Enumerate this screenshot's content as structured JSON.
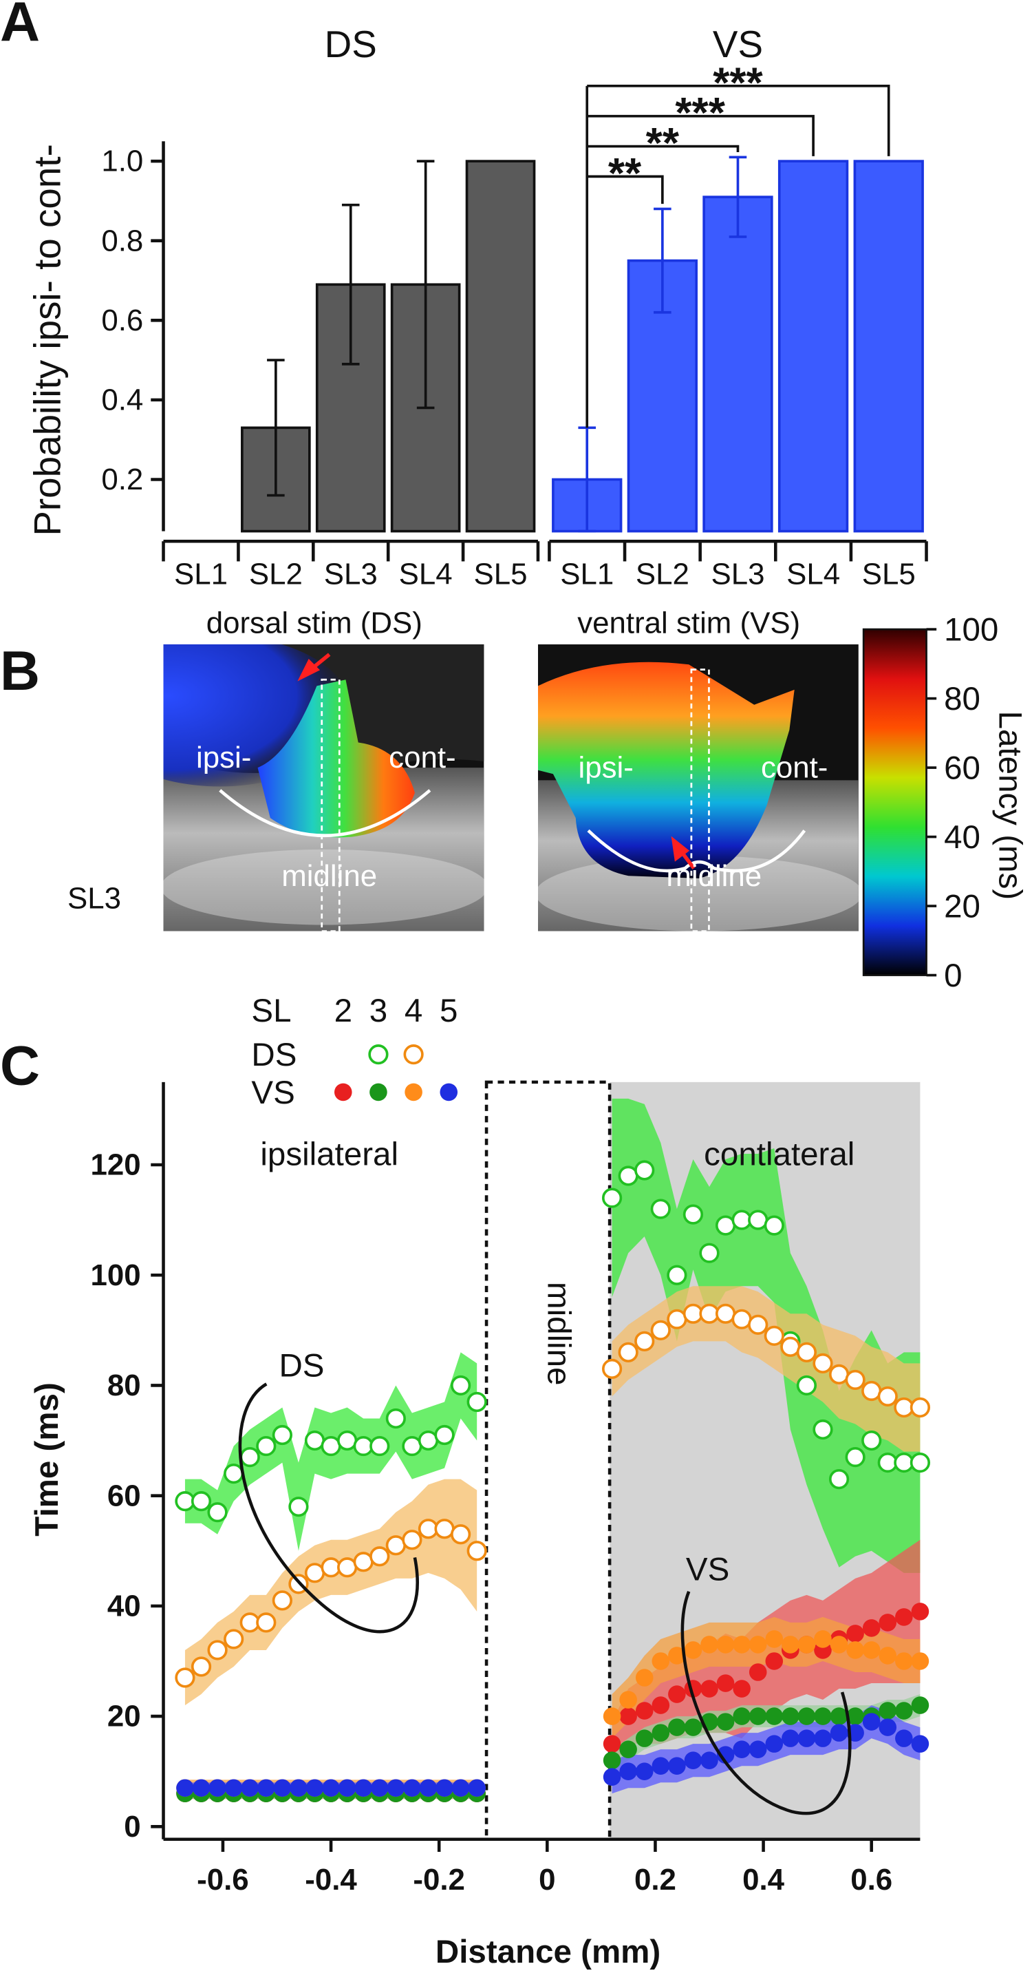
{
  "panel_labels": [
    "A",
    "B",
    "C"
  ],
  "images": [
    {
      "title": "dorsal stim (DS)",
      "labels": [
        "ipsi-",
        "cont-",
        "midline"
      ]
    },
    {
      "title": "ventral stim (VS)",
      "labels": [
        "ipsi-",
        "cont-",
        "midline"
      ]
    }
  ],
  "image_note": "SL3",
  "chart_data": [
    {
      "type": "bar",
      "title": "DS",
      "ylabel": "Probability ipsi- to cont-",
      "categories": [
        "SL1",
        "SL2",
        "SL3",
        "SL4",
        "SL5"
      ],
      "values": [
        0.07,
        0.33,
        0.69,
        0.69,
        1.0
      ],
      "errors": [
        0,
        0.17,
        0.2,
        0.31,
        0
      ],
      "color": "#5a5a5a",
      "edgecolor": "#111111",
      "ylim": [
        0.07,
        1.05
      ],
      "yticks": [
        0.2,
        0.4,
        0.6,
        0.8,
        {
          "value": 1,
          "label": "1.0"
        }
      ]
    },
    {
      "type": "bar",
      "title": "VS",
      "categories": [
        "SL1",
        "SL2",
        "SL3",
        "SL4",
        "SL5"
      ],
      "values": [
        0.2,
        0.75,
        0.91,
        1.0,
        1.0
      ],
      "errors": [
        0.13,
        0.13,
        0.1,
        0,
        0
      ],
      "color": "#3b5bff",
      "edgecolor": "#1a35e0",
      "ylim": [
        0.07,
        1.05
      ],
      "annotations": [
        "**",
        "**",
        "***",
        "***"
      ]
    },
    {
      "type": "colorbar",
      "label": "Latency (ms)",
      "ylim": [
        0,
        100
      ],
      "yticks": [
        0,
        20,
        40,
        60,
        80,
        100
      ],
      "colormap": [
        "#000000",
        "#1030e0",
        "#00c8d0",
        "#30e030",
        "#c8e000",
        "#ff5000",
        "#e01010",
        "#300000"
      ]
    },
    {
      "type": "scatter",
      "xlabel": "Distance (mm)",
      "ylabel": "Time (ms)",
      "annotations": [
        "ipsilateral",
        "contlateral",
        "midline",
        "DS",
        "VS"
      ],
      "legend": {
        "title": "SL",
        "columns": [
          "2",
          "3",
          "4",
          "5"
        ],
        "rows": [
          "DS",
          "VS"
        ]
      },
      "xlim": [
        -0.71,
        0.69
      ],
      "xticks": [
        -0.6,
        -0.4,
        -0.2,
        0,
        0.2,
        0.4,
        0.6
      ],
      "ylim": [
        -2.3,
        135
      ],
      "yticks": [
        0,
        20,
        40,
        60,
        80,
        100,
        120
      ],
      "x": [
        -0.67,
        -0.64,
        -0.61,
        -0.58,
        -0.55,
        -0.52,
        -0.49,
        -0.46,
        -0.43,
        -0.4,
        -0.37,
        -0.34,
        -0.31,
        -0.28,
        -0.25,
        -0.22,
        -0.19,
        -0.16,
        -0.13,
        0.12,
        0.15,
        0.18,
        0.21,
        0.24,
        0.27,
        0.3,
        0.33,
        0.36,
        0.39,
        0.42,
        0.45,
        0.48,
        0.51,
        0.54,
        0.57,
        0.6,
        0.63,
        0.66,
        0.69
      ],
      "series": [
        {
          "name": "3",
          "group": "DS",
          "color": "#22c022",
          "band_color": "#3ae83a",
          "values": [
            59,
            59,
            57,
            64,
            67,
            69,
            71,
            58,
            70,
            69,
            70,
            69,
            69,
            74,
            69,
            70,
            71,
            80,
            77,
            114,
            118,
            119,
            112,
            100,
            111,
            104,
            109,
            110,
            110,
            109,
            88,
            80,
            72,
            63,
            67,
            70,
            66,
            66,
            66
          ],
          "errors": [
            4,
            4,
            4,
            5,
            5,
            5,
            5,
            8,
            6,
            6,
            6,
            5,
            5,
            6,
            6,
            6,
            6,
            6,
            7,
            18,
            14,
            12,
            12,
            12,
            10,
            12,
            12,
            12,
            12,
            14,
            16,
            18,
            18,
            16,
            18,
            20,
            18,
            20,
            20
          ]
        },
        {
          "name": "4",
          "group": "DS",
          "color": "#f08a10",
          "band_color": "#f5bd6a",
          "values": [
            27,
            29,
            32,
            34,
            37,
            37,
            41,
            44,
            46,
            47,
            47,
            48,
            49,
            51,
            52,
            54,
            54,
            53,
            50,
            83,
            86,
            88,
            90,
            92,
            93,
            93,
            93,
            92,
            91,
            89,
            87,
            86,
            84,
            82,
            81,
            79,
            78,
            76,
            76
          ],
          "errors": [
            5,
            5,
            5,
            5,
            5,
            5,
            5,
            5,
            5,
            5,
            5,
            5,
            5,
            6,
            7,
            8,
            9,
            10,
            11,
            5,
            5,
            5,
            5,
            5,
            5,
            5,
            5,
            6,
            6,
            6,
            6,
            7,
            7,
            8,
            8,
            8,
            8,
            8,
            8
          ]
        },
        {
          "name": "2",
          "group": "VS",
          "color": "#e82020",
          "band_color": "#ee5a5a",
          "values": [
            6,
            6,
            6,
            6,
            6,
            6,
            6,
            6,
            6,
            6,
            6,
            6,
            6,
            6,
            6,
            6,
            6,
            6,
            6,
            15,
            20,
            21,
            22,
            24,
            25,
            25,
            26,
            25,
            28,
            30,
            32,
            33,
            32,
            34,
            35,
            36,
            37,
            38,
            39
          ],
          "errors": [
            1,
            1,
            1,
            1,
            1,
            1,
            1,
            1,
            1,
            1,
            1,
            1,
            1,
            1,
            1,
            1,
            1,
            1,
            1,
            4,
            5,
            6,
            7,
            8,
            8,
            8,
            9,
            9,
            9,
            9,
            9,
            9,
            9,
            9,
            10,
            10,
            11,
            12,
            13
          ]
        },
        {
          "name": "3",
          "group": "VS",
          "color": "#1a961a",
          "band_color": "#9ccf9c",
          "values": [
            6,
            6,
            6,
            6,
            6,
            6,
            6,
            6,
            6,
            6,
            6,
            6,
            6,
            6,
            6,
            6,
            6,
            6,
            6,
            12,
            14,
            16,
            17,
            18,
            18,
            19,
            19,
            20,
            20,
            20,
            20,
            20,
            20,
            20,
            20,
            20,
            21,
            21,
            22
          ],
          "errors": [
            1,
            1,
            1,
            1,
            1,
            1,
            1,
            1,
            1,
            1,
            1,
            1,
            1,
            1,
            1,
            1,
            1,
            1,
            1,
            2,
            2,
            2,
            2,
            2,
            2,
            2,
            2,
            2,
            2,
            2,
            2,
            2,
            2,
            2,
            2,
            2,
            2,
            2,
            2
          ]
        },
        {
          "name": "4",
          "group": "VS",
          "color": "#ff8c1a",
          "band_color": "#f5a040",
          "values": [
            7,
            7,
            7,
            7,
            7,
            7,
            7,
            7,
            7,
            7,
            7,
            7,
            7,
            7,
            7,
            7,
            7,
            7,
            7,
            20,
            23,
            27,
            30,
            31,
            32,
            33,
            33,
            33,
            33,
            34,
            33,
            33,
            34,
            33,
            32,
            32,
            31,
            30,
            30
          ],
          "errors": [
            1.5,
            1.5,
            1.5,
            1.5,
            1.5,
            1.5,
            1.5,
            1.5,
            1.5,
            1.5,
            1.5,
            1.5,
            1.5,
            1.5,
            1.5,
            1.5,
            1.5,
            1.5,
            1.5,
            4,
            4,
            4,
            4,
            4,
            4,
            4,
            4,
            4,
            4,
            4,
            4,
            4,
            4,
            4,
            4,
            4,
            4,
            4,
            4
          ]
        },
        {
          "name": "5",
          "group": "VS",
          "color": "#1f2ee0",
          "band_color": "#5a5aff",
          "values": [
            7,
            7,
            7,
            7,
            7,
            7,
            7,
            7,
            7,
            7,
            7,
            7,
            7,
            7,
            7,
            7,
            7,
            7,
            7,
            9,
            10,
            10,
            11,
            11,
            12,
            12,
            13,
            14,
            14,
            15,
            16,
            16,
            16,
            17,
            17,
            19,
            18,
            16,
            15
          ],
          "errors": [
            1,
            1,
            1,
            1,
            1,
            1,
            1,
            1,
            1,
            1,
            1,
            1,
            1,
            1,
            1,
            1,
            1,
            1,
            1,
            3,
            3,
            3,
            3,
            3,
            3,
            3,
            3,
            3,
            3,
            3,
            3,
            3,
            3,
            3,
            3,
            3,
            3,
            3,
            3
          ]
        }
      ]
    }
  ]
}
